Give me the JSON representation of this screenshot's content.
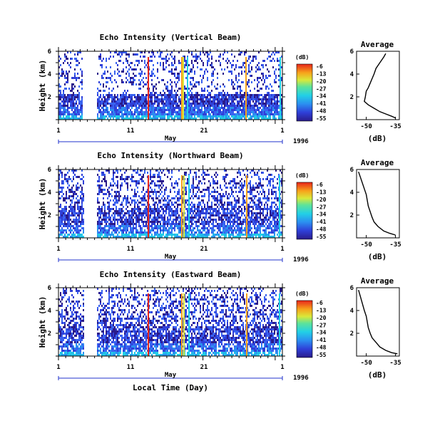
{
  "chart_data": [
    {
      "type": "heatmap",
      "title": "Echo Intensity (Vertical Beam)",
      "ylabel": "Height (km)",
      "y_ticks": [
        "6",
        "4",
        "2"
      ],
      "x_ticks": [
        "1",
        "11",
        "21",
        "1"
      ],
      "month_label": "May",
      "year_label": "1996",
      "colorbar_unit": "(dB)",
      "colorbar_ticks": [
        "-6",
        "-13",
        "-20",
        "-27",
        "-34",
        "-41",
        "-48",
        "-55"
      ],
      "profile": {
        "title": "Average",
        "xlabel": "(dB)",
        "x_ticks": [
          "-50",
          "-35"
        ],
        "y_ticks": [
          "6",
          "4",
          "2"
        ],
        "xlim": [
          -55,
          -33
        ],
        "ylim": [
          0,
          6
        ],
        "points": [
          [
            -40,
            5.8
          ],
          [
            -41,
            5.5
          ],
          [
            -43,
            5.0
          ],
          [
            -45,
            4.5
          ],
          [
            -46,
            4.0
          ],
          [
            -47,
            3.6
          ],
          [
            -48,
            3.2
          ],
          [
            -49,
            2.8
          ],
          [
            -50,
            2.5
          ],
          [
            -50.5,
            2.0
          ],
          [
            -51,
            1.6
          ],
          [
            -49,
            1.3
          ],
          [
            -46,
            1.0
          ],
          [
            -43,
            0.7
          ],
          [
            -40,
            0.5
          ],
          [
            -37,
            0.3
          ],
          [
            -35,
            0.15
          ]
        ]
      }
    },
    {
      "type": "heatmap",
      "title": "Echo Intensity (Northward Beam)",
      "ylabel": "Height (km)",
      "y_ticks": [
        "6",
        "4",
        "2"
      ],
      "x_ticks": [
        "1",
        "11",
        "21",
        "1"
      ],
      "month_label": "May",
      "year_label": "1996",
      "colorbar_unit": "(dB)",
      "colorbar_ticks": [
        "-6",
        "-13",
        "-20",
        "-27",
        "-34",
        "-41",
        "-48",
        "-55"
      ],
      "profile": {
        "title": "Average",
        "xlabel": "(dB)",
        "x_ticks": [
          "-50",
          "-35"
        ],
        "y_ticks": [
          "6",
          "4",
          "2"
        ],
        "xlim": [
          -55,
          -33
        ],
        "ylim": [
          0,
          6
        ],
        "points": [
          [
            -54,
            5.8
          ],
          [
            -53,
            5.3
          ],
          [
            -52,
            4.8
          ],
          [
            -51,
            4.3
          ],
          [
            -50,
            3.8
          ],
          [
            -49.5,
            3.3
          ],
          [
            -49,
            2.8
          ],
          [
            -48,
            2.3
          ],
          [
            -47,
            1.8
          ],
          [
            -46,
            1.4
          ],
          [
            -44,
            1.0
          ],
          [
            -41,
            0.6
          ],
          [
            -38,
            0.4
          ],
          [
            -35,
            0.25
          ]
        ]
      }
    },
    {
      "type": "heatmap",
      "title": "Echo Intensity (Eastward Beam)",
      "ylabel": "Height (km)",
      "y_ticks": [
        "6",
        "4",
        "2"
      ],
      "x_ticks": [
        "1",
        "11",
        "21",
        "1"
      ],
      "month_label": "May",
      "year_label": "1996",
      "xlabel": "Local Time (Day)",
      "colorbar_unit": "(dB)",
      "colorbar_ticks": [
        "-6",
        "-13",
        "-20",
        "-27",
        "-34",
        "-41",
        "-48",
        "-55"
      ],
      "profile": {
        "title": "Average",
        "xlabel": "(dB)",
        "x_ticks": [
          "-50",
          "-35"
        ],
        "y_ticks": [
          "6",
          "4",
          "2"
        ],
        "xlim": [
          -55,
          -33
        ],
        "ylim": [
          0,
          6
        ],
        "points": [
          [
            -54,
            5.8
          ],
          [
            -53,
            5.2
          ],
          [
            -52,
            4.6
          ],
          [
            -51,
            4.0
          ],
          [
            -50,
            3.5
          ],
          [
            -49.5,
            3.0
          ],
          [
            -49,
            2.5
          ],
          [
            -48,
            2.0
          ],
          [
            -47,
            1.6
          ],
          [
            -45,
            1.2
          ],
          [
            -43,
            0.8
          ],
          [
            -40,
            0.5
          ],
          [
            -37,
            0.3
          ],
          [
            -34,
            0.2
          ]
        ]
      }
    }
  ]
}
